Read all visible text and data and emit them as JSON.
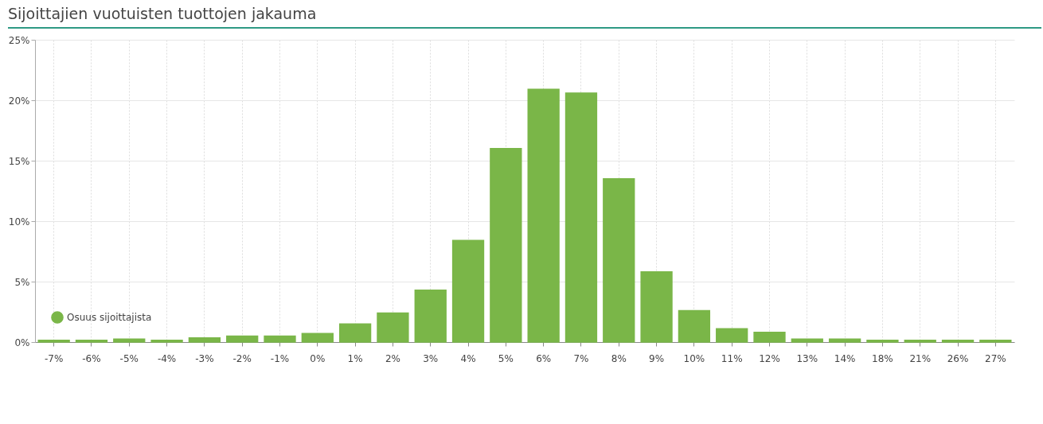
{
  "chart_data": {
    "type": "bar",
    "title": "Sijoittajien vuotuisten tuottojen jakauma",
    "categories": [
      "-7%",
      "-6%",
      "-5%",
      "-4%",
      "-3%",
      "-2%",
      "-1%",
      "0%",
      "1%",
      "2%",
      "3%",
      "4%",
      "5%",
      "6%",
      "7%",
      "8%",
      "9%",
      "10%",
      "11%",
      "12%",
      "13%",
      "14%",
      "18%",
      "21%",
      "26%",
      "27%"
    ],
    "series": [
      {
        "name": "Osuus sijoittajista",
        "color": "#7ab648",
        "values": [
          0.15,
          0.15,
          0.25,
          0.15,
          0.35,
          0.5,
          0.5,
          0.7,
          1.5,
          2.4,
          4.3,
          8.4,
          16.0,
          20.9,
          20.6,
          13.5,
          5.8,
          2.6,
          1.1,
          0.8,
          0.25,
          0.25,
          0.15,
          0.15,
          0.15,
          0.15
        ]
      }
    ],
    "ylim": [
      0,
      25
    ],
    "yticks": [
      {
        "value": 0,
        "label": "0%"
      },
      {
        "value": 5,
        "label": "5%"
      },
      {
        "value": 10,
        "label": "10%"
      },
      {
        "value": 15,
        "label": "15%"
      },
      {
        "value": 20,
        "label": "20%"
      },
      {
        "value": 25,
        "label": "25%"
      }
    ],
    "grid": true,
    "legend": "bottom left"
  }
}
